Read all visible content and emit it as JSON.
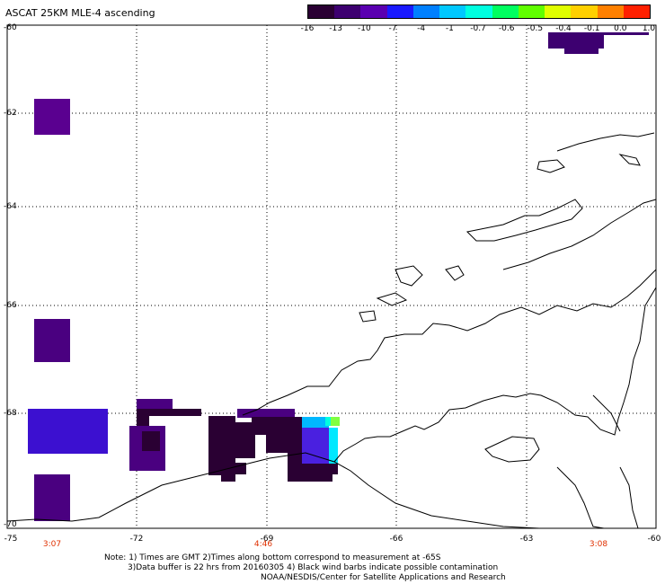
{
  "title": "ASCAT 25KM MLE-4 ascending",
  "colorbar": {
    "labels": [
      "-16",
      "-13",
      "-10",
      "-7",
      "-4",
      "-1",
      "-0.7",
      "-0.6",
      "-0.5",
      "-0.4",
      "-0.1",
      "0.0",
      "1.0"
    ],
    "colors": [
      "#2a0033",
      "#3d0070",
      "#5a00b0",
      "#1a1aff",
      "#0080ff",
      "#00c8ff",
      "#00ffe0",
      "#00ff60",
      "#60ff00",
      "#e0ff00",
      "#ffd000",
      "#ff8000",
      "#ff2000"
    ]
  },
  "axes": {
    "y_labels": [
      "-60",
      "-62",
      "-64",
      "-66",
      "-68",
      "-70"
    ],
    "x_labels": [
      "-75",
      "-72",
      "-69",
      "-66",
      "-63",
      "-60"
    ],
    "time_labels": [
      "3:07",
      "4:46",
      "3:08"
    ]
  },
  "notes": {
    "line1": "Note: 1) Times are GMT 2)Times along bottom correspond to measurement at -65S",
    "line2": "3)Data buffer is 22 hrs from 20160305 4) Black wind barbs indicate possible contamination",
    "line3": "NOAA/NESDIS/Center for Satellite Applications and Research"
  }
}
